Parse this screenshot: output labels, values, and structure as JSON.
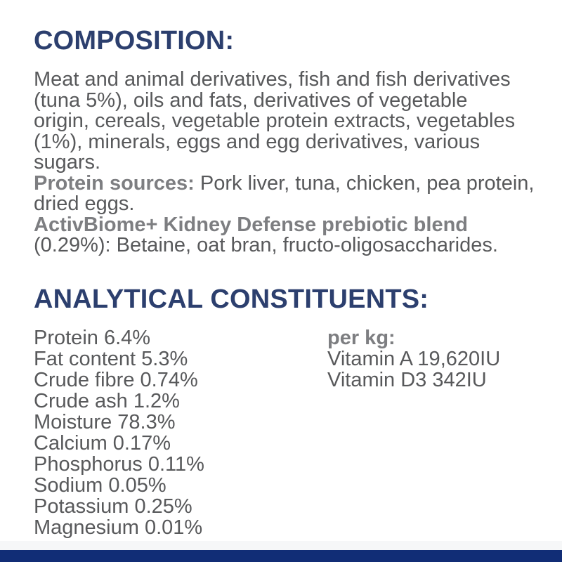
{
  "label": {
    "colors": {
      "heading_navy": "#2c3f6e",
      "body_gray": "#58595b",
      "bold_gray": "#7d7e81",
      "footer_bar_navy": "#112d76",
      "footer_strip_gray": "#f6f7f8",
      "background": "#ffffff"
    },
    "composition": {
      "heading": "COMPOSITION:",
      "body": "Meat and animal derivatives, fish and fish derivatives (tuna 5%), oils and fats, derivatives of vegetable origin, cereals, vegetable protein extracts, vegetables (1%), minerals, eggs and egg derivatives, various sugars.",
      "protein_sources_label": "Protein sources:",
      "protein_sources_value": "Pork liver, tuna, chicken, pea protein, dried eggs.",
      "prebiotic_blend_label": "ActivBiome+ Kidney Defense prebiotic blend",
      "prebiotic_blend_value": "(0.29%): Betaine, oat bran, fructo-oligosaccharides."
    },
    "analytical": {
      "heading": "ANALYTICAL CONSTITUENTS:",
      "constituents": [
        {
          "name": "Protein",
          "value": "6.4%"
        },
        {
          "name": "Fat content",
          "value": "5.3%"
        },
        {
          "name": "Crude fibre",
          "value": "0.74%"
        },
        {
          "name": "Crude ash",
          "value": "1.2%"
        },
        {
          "name": "Moisture",
          "value": "78.3%"
        },
        {
          "name": "Calcium",
          "value": "0.17%"
        },
        {
          "name": "Phosphorus",
          "value": "0.11%"
        },
        {
          "name": "Sodium",
          "value": "0.05%"
        },
        {
          "name": "Potassium",
          "value": "0.25%"
        },
        {
          "name": "Magnesium",
          "value": "0.01%"
        }
      ],
      "per_kg": {
        "label": "per kg:",
        "vitamins": [
          {
            "name": "Vitamin A",
            "value": "19,620IU"
          },
          {
            "name": "Vitamin D3",
            "value": "342IU"
          }
        ]
      }
    }
  }
}
